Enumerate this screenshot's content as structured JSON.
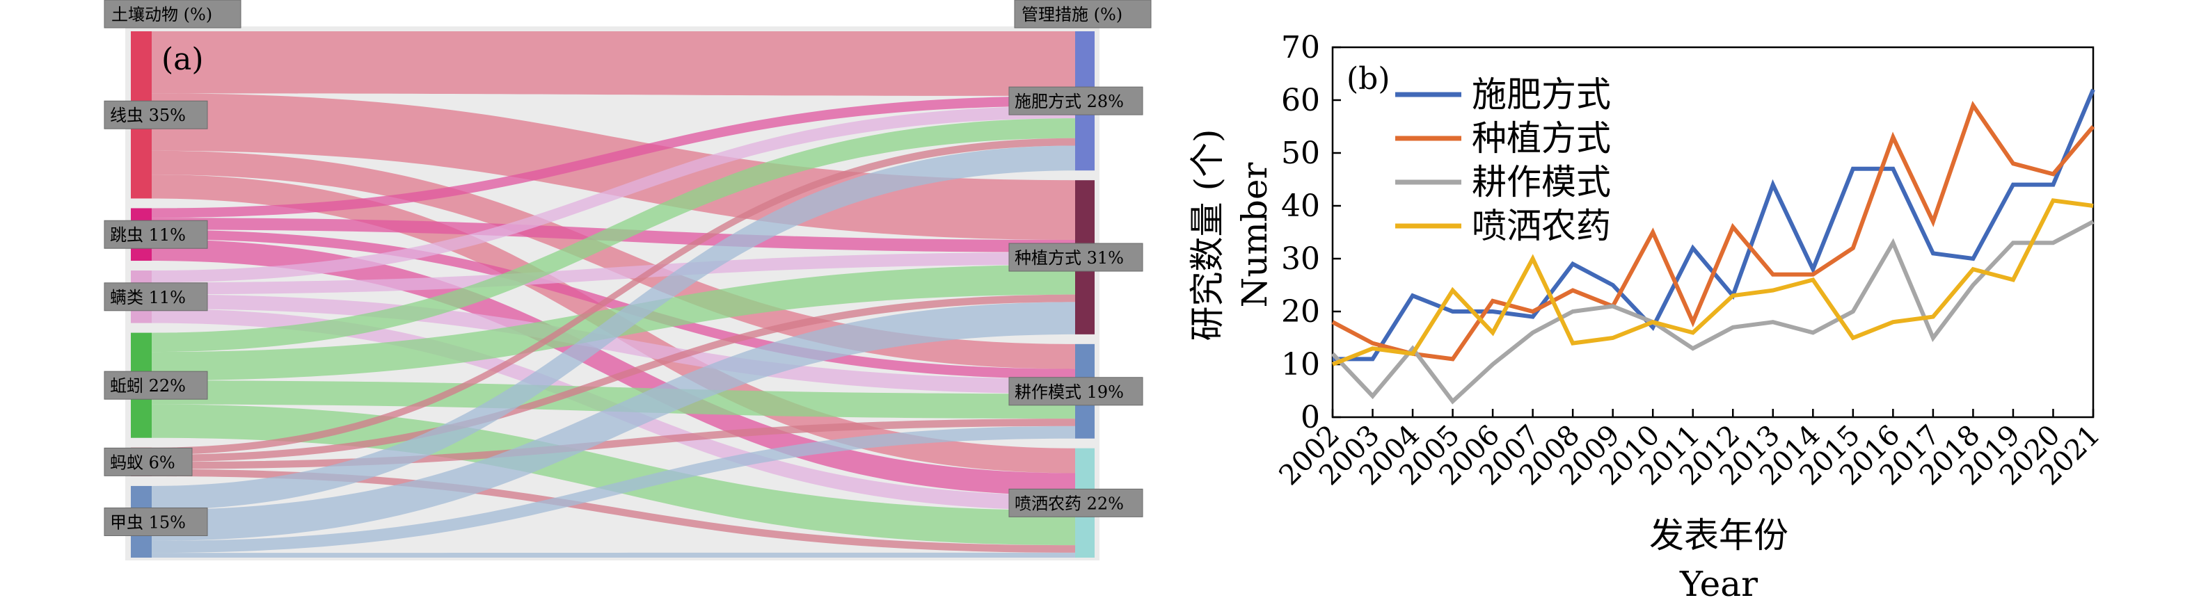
{
  "chart_data": [
    {
      "type": "sankey",
      "panel_label": "(a)",
      "left_header": "土壤动物 (%)",
      "right_header": "管理措施 (%)",
      "sources": [
        {
          "name": "线虫",
          "percent": 35,
          "label": "线虫 35%",
          "color": "#e0415f",
          "flow_color": "#e07a8e"
        },
        {
          "name": "跳虫",
          "percent": 11,
          "label": "跳虫 11%",
          "color": "#d9207e",
          "flow_color": "#e0559f"
        },
        {
          "name": "螨类",
          "percent": 11,
          "label": "螨类 11%",
          "color": "#e0a6d3",
          "flow_color": "#e2b2df"
        },
        {
          "name": "蚯蚓",
          "percent": 22,
          "label": "蚯蚓 22%",
          "color": "#4cb84c",
          "flow_color": "#8ed48a"
        },
        {
          "name": "蚂蚁",
          "percent": 6,
          "label": "蚂蚁 6%",
          "color": "#c2455f",
          "flow_color": "#d3798a"
        },
        {
          "name": "甲虫",
          "percent": 15,
          "label": "甲虫 15%",
          "color": "#6f8fbf",
          "flow_color": "#a3bbd6"
        }
      ],
      "targets": [
        {
          "name": "施肥方式",
          "percent": 28,
          "label": "施肥方式 28%",
          "color": "#6f7fcf"
        },
        {
          "name": "种植方式",
          "percent": 31,
          "label": "种植方式 31%",
          "color": "#7a2e4e"
        },
        {
          "name": "耕作模式",
          "percent": 19,
          "label": "耕作模式 19%",
          "color": "#6b8cc0"
        },
        {
          "name": "喷洒农药",
          "percent": 22,
          "label": "喷洒农药 22%",
          "color": "#9ad8d6"
        }
      ],
      "flows": [
        {
          "source": "线虫",
          "target": "施肥方式",
          "value": 13.0
        },
        {
          "source": "线虫",
          "target": "种植方式",
          "value": 12.0
        },
        {
          "source": "线虫",
          "target": "耕作模式",
          "value": 5.0
        },
        {
          "source": "线虫",
          "target": "喷洒农药",
          "value": 5.0
        },
        {
          "source": "跳虫",
          "target": "施肥方式",
          "value": 2.0
        },
        {
          "source": "跳虫",
          "target": "种植方式",
          "value": 2.5
        },
        {
          "source": "跳虫",
          "target": "耕作模式",
          "value": 2.0
        },
        {
          "source": "跳虫",
          "target": "喷洒农药",
          "value": 4.5
        },
        {
          "source": "螨类",
          "target": "施肥方式",
          "value": 2.5
        },
        {
          "source": "螨类",
          "target": "种植方式",
          "value": 2.5
        },
        {
          "source": "螨类",
          "target": "耕作模式",
          "value": 3.0
        },
        {
          "source": "螨类",
          "target": "喷洒农药",
          "value": 3.0
        },
        {
          "source": "蚯蚓",
          "target": "施肥方式",
          "value": 4.0
        },
        {
          "source": "蚯蚓",
          "target": "种植方式",
          "value": 6.0
        },
        {
          "source": "蚯蚓",
          "target": "耕作模式",
          "value": 5.0
        },
        {
          "source": "蚯蚓",
          "target": "喷洒农药",
          "value": 7.0
        },
        {
          "source": "蚂蚁",
          "target": "施肥方式",
          "value": 1.5
        },
        {
          "source": "蚂蚁",
          "target": "种植方式",
          "value": 1.5
        },
        {
          "source": "蚂蚁",
          "target": "耕作模式",
          "value": 1.5
        },
        {
          "source": "蚂蚁",
          "target": "喷洒农药",
          "value": 1.5
        },
        {
          "source": "甲虫",
          "target": "施肥方式",
          "value": 5.0
        },
        {
          "source": "甲虫",
          "target": "种植方式",
          "value": 6.5
        },
        {
          "source": "甲虫",
          "target": "耕作模式",
          "value": 2.5
        },
        {
          "source": "甲虫",
          "target": "喷洒农药",
          "value": 1.0
        }
      ]
    },
    {
      "type": "line",
      "panel_label": "(b)",
      "xlabel": "发表年份",
      "xlabel_en": "Year",
      "ylabel": "研究数量 (个)",
      "ylabel_en": "Number",
      "x": [
        2002,
        2003,
        2004,
        2005,
        2006,
        2007,
        2008,
        2009,
        2010,
        2011,
        2012,
        2013,
        2014,
        2015,
        2016,
        2017,
        2018,
        2019,
        2020,
        2021
      ],
      "xlim": [
        2002,
        2021
      ],
      "ylim": [
        0,
        70
      ],
      "yticks": [
        0,
        10,
        20,
        30,
        40,
        50,
        60,
        70
      ],
      "grid": false,
      "legend_position": "top-left",
      "series": [
        {
          "name": "施肥方式",
          "color": "#4169b8",
          "values": [
            11,
            11,
            23,
            20,
            20,
            19,
            29,
            25,
            17,
            32,
            23,
            44,
            28,
            47,
            47,
            31,
            30,
            44,
            44,
            62
          ]
        },
        {
          "name": "种植方式",
          "color": "#e06c30",
          "values": [
            18,
            14,
            12,
            11,
            22,
            20,
            24,
            21,
            35,
            18,
            36,
            27,
            27,
            32,
            53,
            37,
            59,
            48,
            46,
            55
          ]
        },
        {
          "name": "耕作模式",
          "color": "#a6a6a6",
          "values": [
            12,
            4,
            13,
            3,
            10,
            16,
            20,
            21,
            18,
            13,
            17,
            18,
            16,
            20,
            33,
            15,
            25,
            33,
            33,
            37
          ]
        },
        {
          "name": "喷洒农药",
          "color": "#ecb11c",
          "values": [
            10,
            13,
            12,
            24,
            16,
            30,
            14,
            15,
            18,
            16,
            23,
            24,
            26,
            15,
            18,
            19,
            28,
            26,
            41,
            40
          ]
        }
      ]
    }
  ]
}
